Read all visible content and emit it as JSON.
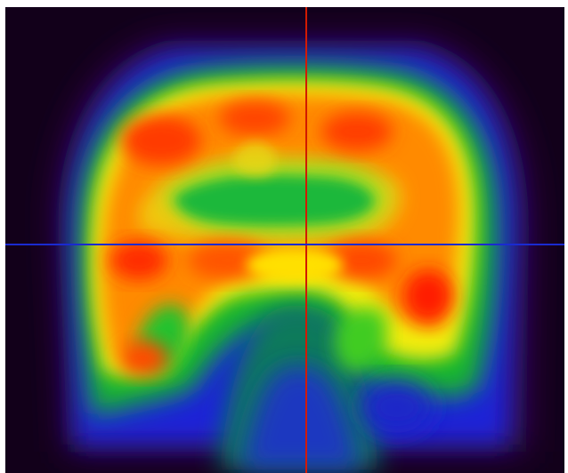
{
  "viewer": {
    "modality_icon": "pet-brain-coronal-slice",
    "background_color": "#12001a",
    "colormap": [
      "#12001a",
      "#2a0a4a",
      "#1d1dd0",
      "#0a8a3a",
      "#20d020",
      "#ffff00",
      "#ffa500",
      "#ff5a00",
      "#ff2a00"
    ],
    "crosshair": {
      "vertical_color": "#d21a00",
      "horizontal_color": "#1a2ad0"
    }
  }
}
